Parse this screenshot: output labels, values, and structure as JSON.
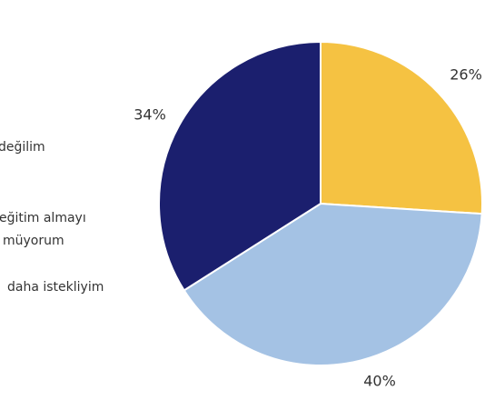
{
  "chart_data": {
    "type": "pie",
    "categories": [
      [
        "değilim"
      ],
      [
        "eğitim almayı",
        "müyorum"
      ],
      [
        "daha istekliyim"
      ]
    ],
    "values": [
      26,
      40,
      34
    ],
    "value_labels": [
      "26%",
      "40%",
      "34%"
    ],
    "colors": [
      "#f5c242",
      "#a4c2e4",
      "#1b1f6e"
    ]
  }
}
